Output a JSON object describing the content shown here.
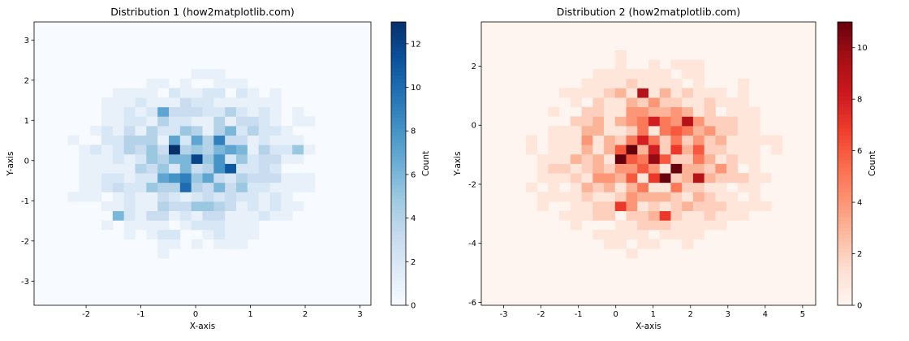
{
  "chart_data": [
    {
      "type": "heatmap",
      "title": "Distribution 1 (how2matplotlib.com)",
      "xlabel": "X-axis",
      "ylabel": "Y-axis",
      "xlim": [
        -2.95,
        3.2
      ],
      "ylim": [
        -3.6,
        3.45
      ],
      "xticks": [
        -2,
        -1,
        0,
        1,
        2,
        3
      ],
      "yticks": [
        -3,
        -2,
        -1,
        0,
        1,
        2,
        3
      ],
      "colormap": "Blues",
      "colorbar": {
        "label": "Count",
        "min": 0,
        "max": 13,
        "ticks": [
          0,
          2,
          4,
          6,
          8,
          10,
          12
        ]
      },
      "bins": [
        30,
        30
      ],
      "hot_cells": [
        {
          "x": -0.38,
          "y": 0.3,
          "count": 13
        },
        {
          "x": 0.05,
          "y": 0.1,
          "count": 12
        },
        {
          "x": 0.65,
          "y": -0.2,
          "count": 11
        },
        {
          "x": -0.15,
          "y": -0.7,
          "count": 10
        },
        {
          "x": 0.4,
          "y": 0.6,
          "count": 9
        },
        {
          "x": -0.55,
          "y": 1.3,
          "count": 7
        },
        {
          "x": 0.9,
          "y": 0.3,
          "count": 6
        },
        {
          "x": -1.4,
          "y": -1.4,
          "count": 6
        },
        {
          "x": 1.95,
          "y": 0.3,
          "count": 5
        }
      ],
      "spread": {
        "center_x": 0.0,
        "center_y": 0.0,
        "sigma_x": 1.0,
        "sigma_y": 1.0,
        "peak": 13
      }
    },
    {
      "type": "heatmap",
      "title": "Distribution 2 (how2matplotlib.com)",
      "xlabel": "X-axis",
      "ylabel": "Y-axis",
      "xlim": [
        -3.6,
        5.35
      ],
      "ylim": [
        -6.1,
        3.5
      ],
      "xticks": [
        -3,
        -2,
        -1,
        0,
        1,
        2,
        3,
        4,
        5
      ],
      "yticks": [
        -6,
        -4,
        -2,
        0,
        2
      ],
      "colormap": "Reds",
      "colorbar": {
        "label": "Count",
        "min": 0,
        "max": 11,
        "ticks": [
          0,
          2,
          4,
          6,
          8,
          10
        ]
      },
      "bins": [
        30,
        30
      ],
      "hot_cells": [
        {
          "x": 0.15,
          "y": -1.0,
          "count": 11
        },
        {
          "x": 0.45,
          "y": -0.7,
          "count": 11
        },
        {
          "x": 1.35,
          "y": -1.9,
          "count": 11
        },
        {
          "x": 1.65,
          "y": -1.6,
          "count": 11
        },
        {
          "x": 1.0,
          "y": -1.3,
          "count": 10
        },
        {
          "x": 0.75,
          "y": 1.0,
          "count": 9
        },
        {
          "x": 1.95,
          "y": 0.0,
          "count": 9
        },
        {
          "x": 1.05,
          "y": 0.0,
          "count": 8
        },
        {
          "x": 2.25,
          "y": -1.9,
          "count": 9
        },
        {
          "x": 0.2,
          "y": -2.8,
          "count": 7
        },
        {
          "x": 1.4,
          "y": -3.1,
          "count": 7
        }
      ],
      "spread": {
        "center_x": 1.0,
        "center_y": -1.0,
        "sigma_x": 1.5,
        "sigma_y": 1.5,
        "peak": 11
      }
    }
  ]
}
